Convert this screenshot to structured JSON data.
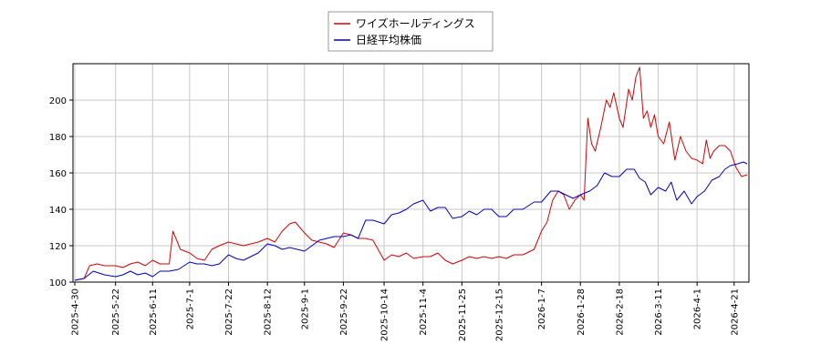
{
  "chart_data": {
    "type": "line",
    "grid": true,
    "legend_position": "top-center",
    "xlim": [
      "2025-04-30",
      "2026-04-28"
    ],
    "ylim": [
      100,
      220
    ],
    "y_ticks": [
      100,
      120,
      140,
      160,
      180,
      200
    ],
    "x_ticks": [
      "2025-4-30",
      "2025-5-22",
      "2025-6-11",
      "2025-7-1",
      "2025-7-22",
      "2025-8-12",
      "2025-9-1",
      "2025-9-22",
      "2025-10-14",
      "2025-11-4",
      "2025-11-25",
      "2025-12-15",
      "2026-1-7",
      "2026-1-28",
      "2026-2-18",
      "2026-3-11",
      "2026-4-1",
      "2026-4-21"
    ],
    "series": [
      {
        "name": "ワイズホールディングス",
        "color": "#dd0000",
        "points": [
          [
            "2025-04-30",
            101
          ],
          [
            "2025-05-05",
            102
          ],
          [
            "2025-05-08",
            109
          ],
          [
            "2025-05-12",
            110
          ],
          [
            "2025-05-16",
            109
          ],
          [
            "2025-05-22",
            109
          ],
          [
            "2025-05-26",
            108
          ],
          [
            "2025-05-30",
            110
          ],
          [
            "2025-06-03",
            111
          ],
          [
            "2025-06-07",
            109
          ],
          [
            "2025-06-11",
            112
          ],
          [
            "2025-06-15",
            110
          ],
          [
            "2025-06-20",
            110
          ],
          [
            "2025-06-22",
            128
          ],
          [
            "2025-06-26",
            118
          ],
          [
            "2025-07-01",
            116
          ],
          [
            "2025-07-05",
            113
          ],
          [
            "2025-07-09",
            112
          ],
          [
            "2025-07-13",
            118
          ],
          [
            "2025-07-17",
            120
          ],
          [
            "2025-07-22",
            122
          ],
          [
            "2025-07-26",
            121
          ],
          [
            "2025-07-30",
            120
          ],
          [
            "2025-08-03",
            121
          ],
          [
            "2025-08-07",
            122
          ],
          [
            "2025-08-12",
            124
          ],
          [
            "2025-08-16",
            122
          ],
          [
            "2025-08-20",
            128
          ],
          [
            "2025-08-24",
            132
          ],
          [
            "2025-08-27",
            133
          ],
          [
            "2025-09-01",
            127
          ],
          [
            "2025-09-05",
            123
          ],
          [
            "2025-09-09",
            122
          ],
          [
            "2025-09-13",
            121
          ],
          [
            "2025-09-17",
            119
          ],
          [
            "2025-09-22",
            127
          ],
          [
            "2025-09-26",
            126
          ],
          [
            "2025-09-30",
            124
          ],
          [
            "2025-10-04",
            124
          ],
          [
            "2025-10-08",
            123
          ],
          [
            "2025-10-14",
            112
          ],
          [
            "2025-10-18",
            115
          ],
          [
            "2025-10-22",
            114
          ],
          [
            "2025-10-26",
            116
          ],
          [
            "2025-10-30",
            113
          ],
          [
            "2025-11-04",
            114
          ],
          [
            "2025-11-08",
            114
          ],
          [
            "2025-11-12",
            116
          ],
          [
            "2025-11-16",
            112
          ],
          [
            "2025-11-20",
            110
          ],
          [
            "2025-11-25",
            112
          ],
          [
            "2025-11-29",
            114
          ],
          [
            "2025-12-03",
            113
          ],
          [
            "2025-12-07",
            114
          ],
          [
            "2025-12-11",
            113
          ],
          [
            "2025-12-15",
            114
          ],
          [
            "2025-12-19",
            113
          ],
          [
            "2025-12-23",
            115
          ],
          [
            "2025-12-28",
            115
          ],
          [
            "2026-01-03",
            118
          ],
          [
            "2026-01-07",
            128
          ],
          [
            "2026-01-10",
            133
          ],
          [
            "2026-01-13",
            145
          ],
          [
            "2026-01-16",
            150
          ],
          [
            "2026-01-19",
            148
          ],
          [
            "2026-01-22",
            140
          ],
          [
            "2026-01-25",
            145
          ],
          [
            "2026-01-28",
            148
          ],
          [
            "2026-01-30",
            145
          ],
          [
            "2026-02-01",
            190
          ],
          [
            "2026-02-03",
            176
          ],
          [
            "2026-02-05",
            172
          ],
          [
            "2026-02-08",
            185
          ],
          [
            "2026-02-11",
            200
          ],
          [
            "2026-02-13",
            196
          ],
          [
            "2026-02-15",
            204
          ],
          [
            "2026-02-18",
            190
          ],
          [
            "2026-02-20",
            185
          ],
          [
            "2026-02-23",
            206
          ],
          [
            "2026-02-25",
            200
          ],
          [
            "2026-02-27",
            213
          ],
          [
            "2026-03-01",
            218
          ],
          [
            "2026-03-03",
            190
          ],
          [
            "2026-03-05",
            194
          ],
          [
            "2026-03-07",
            185
          ],
          [
            "2026-03-09",
            192
          ],
          [
            "2026-03-11",
            180
          ],
          [
            "2026-03-14",
            176
          ],
          [
            "2026-03-17",
            188
          ],
          [
            "2026-03-20",
            167
          ],
          [
            "2026-03-23",
            180
          ],
          [
            "2026-03-26",
            172
          ],
          [
            "2026-03-29",
            168
          ],
          [
            "2026-04-01",
            167
          ],
          [
            "2026-04-04",
            165
          ],
          [
            "2026-04-06",
            178
          ],
          [
            "2026-04-08",
            168
          ],
          [
            "2026-04-10",
            172
          ],
          [
            "2026-04-13",
            175
          ],
          [
            "2026-04-16",
            175
          ],
          [
            "2026-04-19",
            172
          ],
          [
            "2026-04-22",
            163
          ],
          [
            "2026-04-25",
            158
          ],
          [
            "2026-04-28",
            159
          ]
        ]
      },
      {
        "name": "日経平均株価",
        "color": "#0000cc",
        "points": [
          [
            "2025-04-30",
            101
          ],
          [
            "2025-05-05",
            102
          ],
          [
            "2025-05-10",
            106
          ],
          [
            "2025-05-16",
            104
          ],
          [
            "2025-05-22",
            103
          ],
          [
            "2025-05-26",
            104
          ],
          [
            "2025-05-30",
            106
          ],
          [
            "2025-06-03",
            104
          ],
          [
            "2025-06-07",
            105
          ],
          [
            "2025-06-11",
            103
          ],
          [
            "2025-06-15",
            106
          ],
          [
            "2025-06-20",
            106
          ],
          [
            "2025-06-25",
            107
          ],
          [
            "2025-07-01",
            111
          ],
          [
            "2025-07-05",
            110
          ],
          [
            "2025-07-09",
            110
          ],
          [
            "2025-07-13",
            109
          ],
          [
            "2025-07-17",
            110
          ],
          [
            "2025-07-22",
            115
          ],
          [
            "2025-07-26",
            113
          ],
          [
            "2025-07-30",
            112
          ],
          [
            "2025-08-03",
            114
          ],
          [
            "2025-08-07",
            116
          ],
          [
            "2025-08-12",
            121
          ],
          [
            "2025-08-16",
            120
          ],
          [
            "2025-08-20",
            118
          ],
          [
            "2025-08-24",
            119
          ],
          [
            "2025-08-28",
            118
          ],
          [
            "2025-09-01",
            117
          ],
          [
            "2025-09-05",
            120
          ],
          [
            "2025-09-09",
            123
          ],
          [
            "2025-09-13",
            124
          ],
          [
            "2025-09-17",
            125
          ],
          [
            "2025-09-22",
            125
          ],
          [
            "2025-09-26",
            126
          ],
          [
            "2025-09-30",
            124
          ],
          [
            "2025-10-04",
            134
          ],
          [
            "2025-10-08",
            134
          ],
          [
            "2025-10-14",
            132
          ],
          [
            "2025-10-18",
            137
          ],
          [
            "2025-10-22",
            138
          ],
          [
            "2025-10-26",
            140
          ],
          [
            "2025-10-30",
            143
          ],
          [
            "2025-11-04",
            145
          ],
          [
            "2025-11-08",
            139
          ],
          [
            "2025-11-12",
            141
          ],
          [
            "2025-11-16",
            141
          ],
          [
            "2025-11-20",
            135
          ],
          [
            "2025-11-25",
            136
          ],
          [
            "2025-11-29",
            139
          ],
          [
            "2025-12-03",
            137
          ],
          [
            "2025-12-07",
            140
          ],
          [
            "2025-12-11",
            140
          ],
          [
            "2025-12-15",
            136
          ],
          [
            "2025-12-19",
            136
          ],
          [
            "2025-12-23",
            140
          ],
          [
            "2025-12-28",
            140
          ],
          [
            "2026-01-03",
            144
          ],
          [
            "2026-01-07",
            144
          ],
          [
            "2026-01-12",
            150
          ],
          [
            "2026-01-16",
            150
          ],
          [
            "2026-01-20",
            148
          ],
          [
            "2026-01-24",
            146
          ],
          [
            "2026-01-28",
            148
          ],
          [
            "2026-02-02",
            150
          ],
          [
            "2026-02-06",
            153
          ],
          [
            "2026-02-10",
            160
          ],
          [
            "2026-02-14",
            158
          ],
          [
            "2026-02-18",
            158
          ],
          [
            "2026-02-22",
            162
          ],
          [
            "2026-02-26",
            162
          ],
          [
            "2026-03-01",
            157
          ],
          [
            "2026-03-04",
            155
          ],
          [
            "2026-03-07",
            148
          ],
          [
            "2026-03-11",
            152
          ],
          [
            "2026-03-15",
            150
          ],
          [
            "2026-03-18",
            155
          ],
          [
            "2026-03-21",
            145
          ],
          [
            "2026-03-25",
            150
          ],
          [
            "2026-03-29",
            143
          ],
          [
            "2026-04-01",
            147
          ],
          [
            "2026-04-05",
            150
          ],
          [
            "2026-04-09",
            156
          ],
          [
            "2026-04-13",
            158
          ],
          [
            "2026-04-16",
            162
          ],
          [
            "2026-04-19",
            164
          ],
          [
            "2026-04-23",
            165
          ],
          [
            "2026-04-26",
            166
          ],
          [
            "2026-04-28",
            165
          ]
        ]
      }
    ]
  }
}
